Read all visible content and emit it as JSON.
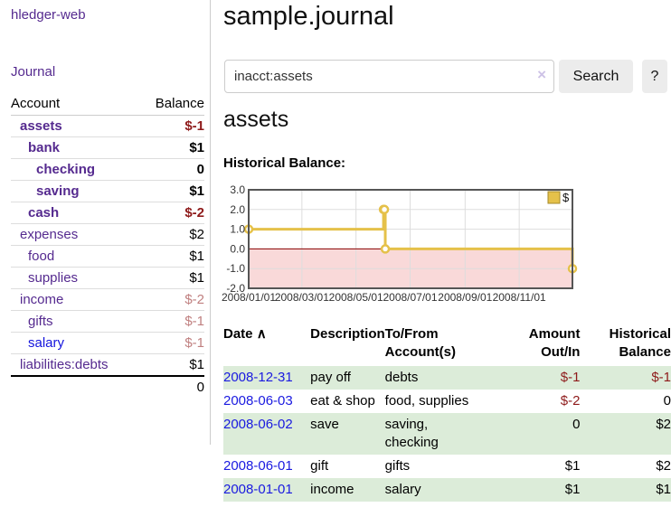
{
  "colors": {
    "link_purple": "#552a8f",
    "link_blue": "#1414dd",
    "negative_strong": "#8e1a1a",
    "negative_soft": "#c08080",
    "row_green": "#dcecd9",
    "chart_gold": "#e5c14a",
    "chart_gold_dark": "#a5892b",
    "chart_negative_fill": "#f9d9d9",
    "chart_zero_line": "#8b0000",
    "chart_border": "#555555",
    "grid_line": "#dddddd"
  },
  "brand": {
    "title": "hledger-web"
  },
  "nav": {
    "journal": "Journal"
  },
  "sidebar": {
    "header": {
      "account": "Account",
      "balance": "Balance"
    },
    "accounts": [
      {
        "name": "assets",
        "balance": "$-1",
        "depth": 1,
        "bold": true,
        "blue": false
      },
      {
        "name": "bank",
        "balance": "$1",
        "depth": 2,
        "bold": true,
        "blue": false
      },
      {
        "name": "checking",
        "balance": "0",
        "depth": 3,
        "bold": true,
        "blue": false
      },
      {
        "name": "saving",
        "balance": "$1",
        "depth": 3,
        "bold": true,
        "blue": false
      },
      {
        "name": "cash",
        "balance": "$-2",
        "depth": 2,
        "bold": true,
        "blue": false
      },
      {
        "name": "expenses",
        "balance": "$2",
        "depth": 1,
        "bold": false,
        "blue": false
      },
      {
        "name": "food",
        "balance": "$1",
        "depth": 2,
        "bold": false,
        "blue": false
      },
      {
        "name": "supplies",
        "balance": "$1",
        "depth": 2,
        "bold": false,
        "blue": false
      },
      {
        "name": "income",
        "balance": "$-2",
        "depth": 1,
        "bold": false,
        "blue": false
      },
      {
        "name": "gifts",
        "balance": "$-1",
        "depth": 2,
        "bold": false,
        "blue": false
      },
      {
        "name": "salary",
        "balance": "$-1",
        "depth": 2,
        "bold": false,
        "blue": true
      },
      {
        "name": "liabilities:debts",
        "balance": "$1",
        "depth": 1,
        "bold": false,
        "blue": false
      }
    ],
    "total": "0"
  },
  "main": {
    "title": "sample.journal",
    "account_heading": "assets",
    "chart_heading": "Historical Balance:"
  },
  "search": {
    "value": "inacct:assets",
    "clear": "×",
    "search_button": "Search",
    "help_button": "?"
  },
  "chart_data": {
    "type": "line",
    "step": true,
    "title": "Historical Balance:",
    "legend": [
      {
        "label": "$",
        "color": "#e5c14a"
      }
    ],
    "legend_position": "top-right",
    "grid": true,
    "ylim": [
      -2,
      3
    ],
    "yticks": [
      "3.0",
      "2.0",
      "1.0",
      "0.0",
      "-1.0",
      "-2.0"
    ],
    "xticks": [
      "2008/01/01",
      "2008/03/01",
      "2008/05/01",
      "2008/07/01",
      "2008/09/01",
      "2008/11/01"
    ],
    "x_range": [
      "2008/01/01",
      "2008/12/31"
    ],
    "series": [
      {
        "name": "$",
        "points": [
          [
            "2008/01/01",
            1
          ],
          [
            "2008/06/01",
            2
          ],
          [
            "2008/06/02",
            2
          ],
          [
            "2008/06/03",
            0
          ],
          [
            "2008/12/31",
            -1
          ]
        ]
      }
    ],
    "negative_region_shaded": true
  },
  "register": {
    "columns": [
      "Date",
      "Description",
      "To/From\nAccount(s)",
      "Amount\nOut/In",
      "Historical\nBalance"
    ],
    "sort_indicator": "∧",
    "rows": [
      {
        "date": "2008-12-31",
        "description": "pay off",
        "accounts": "debts",
        "amount": "$-1",
        "balance": "$-1"
      },
      {
        "date": "2008-06-03",
        "description": "eat & shop",
        "accounts": "food, supplies",
        "amount": "$-2",
        "balance": "0"
      },
      {
        "date": "2008-06-02",
        "description": "save",
        "accounts": "saving,\nchecking",
        "amount": "0",
        "balance": "$2"
      },
      {
        "date": "2008-06-01",
        "description": "gift",
        "accounts": "gifts",
        "amount": "$1",
        "balance": "$2"
      },
      {
        "date": "2008-01-01",
        "description": "income",
        "accounts": "salary",
        "amount": "$1",
        "balance": "$1"
      }
    ]
  }
}
